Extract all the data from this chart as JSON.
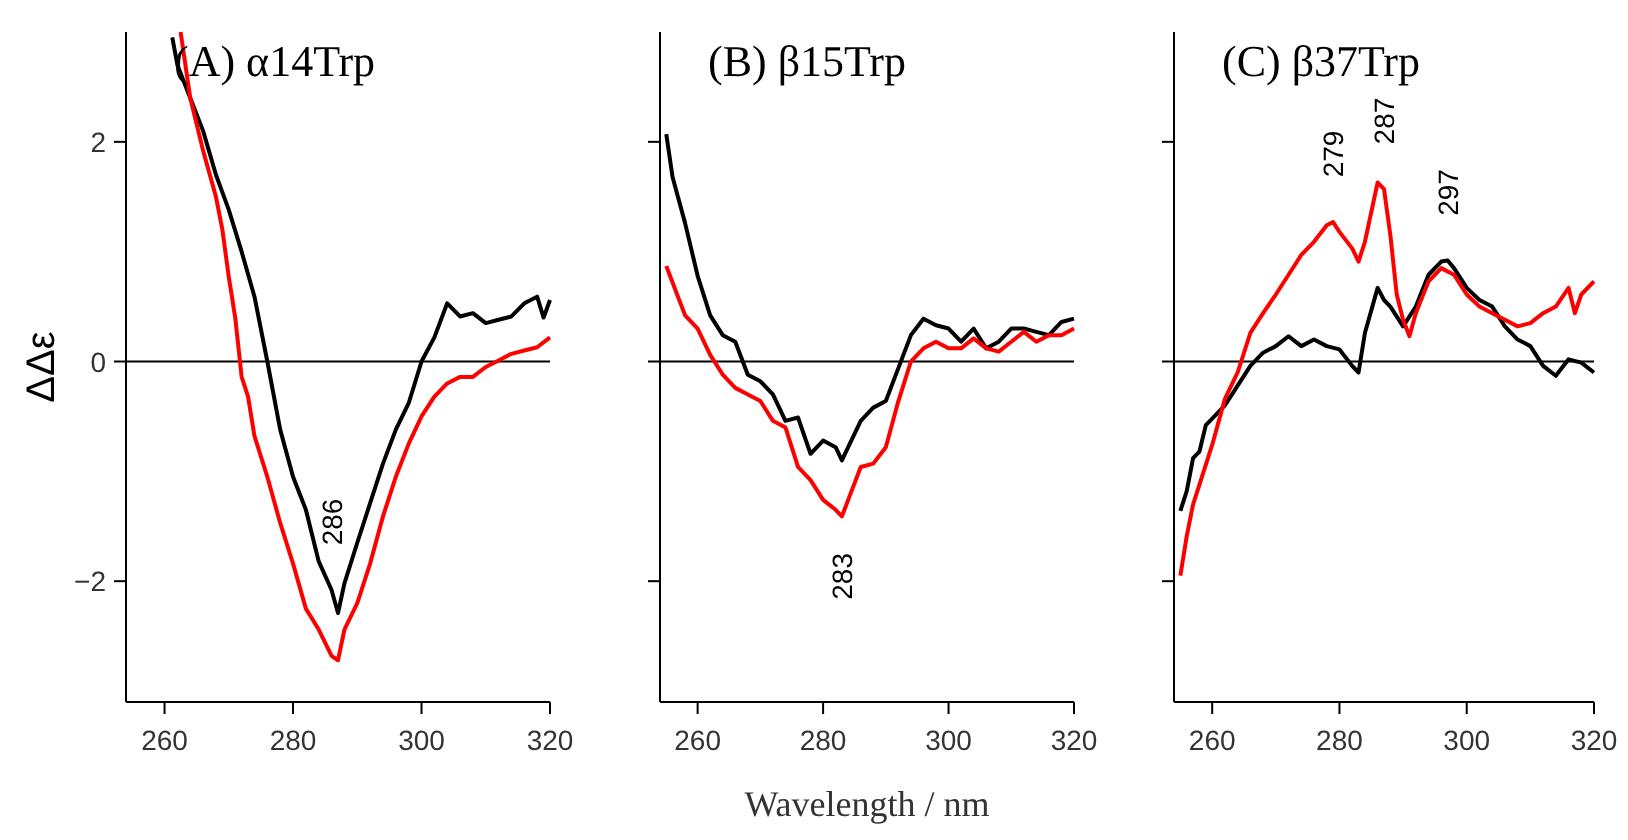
{
  "chart_data": [
    {
      "type": "line",
      "title": "(A) α14Trp",
      "ylabel": "ΔΔε",
      "xlim": [
        254,
        320
      ],
      "xticks": [
        260,
        280,
        300,
        320
      ],
      "ylim": [
        -3.1,
        3
      ],
      "yticks": [
        -2,
        0,
        2
      ],
      "ref_lines": [
        {
          "axis": "y",
          "value": 0,
          "color": "#000000"
        }
      ],
      "annotations": [
        {
          "text": "286",
          "x": 286,
          "y": -2.08
        }
      ],
      "series": [
        {
          "color": "#000000",
          "x": [
            261.2,
            262,
            264,
            266,
            268,
            270,
            272,
            274,
            276,
            278,
            280,
            282,
            284,
            286,
            287,
            288,
            290,
            292,
            294,
            296,
            298,
            300,
            302,
            304,
            306,
            308,
            310,
            312,
            314,
            316,
            318,
            319,
            320
          ],
          "values": [
            2.95,
            2.7,
            2.4,
            2.1,
            1.7,
            1.38,
            1.0,
            0.59,
            0,
            -0.62,
            -1.05,
            -1.35,
            -1.82,
            -2.08,
            -2.29,
            -2.02,
            -1.65,
            -1.29,
            -0.93,
            -0.62,
            -0.38,
            0,
            0.22,
            0.53,
            0.41,
            0.44,
            0.35,
            0.38,
            0.41,
            0.53,
            0.59,
            0.4,
            0.56
          ]
        },
        {
          "color": "#ff0000",
          "x": [
            262.5,
            264,
            266,
            268,
            269,
            270,
            271,
            272,
            273,
            274,
            276,
            278,
            280,
            282,
            284,
            286,
            287,
            288,
            290,
            292,
            294,
            296,
            298,
            300,
            302,
            304,
            306,
            308,
            310,
            312,
            314,
            316,
            318,
            320
          ],
          "values": [
            3.0,
            2.4,
            1.92,
            1.5,
            1.2,
            0.77,
            0.4,
            -0.14,
            -0.32,
            -0.68,
            -1.05,
            -1.47,
            -1.84,
            -2.25,
            -2.44,
            -2.68,
            -2.72,
            -2.44,
            -2.2,
            -1.84,
            -1.41,
            -1.05,
            -0.75,
            -0.5,
            -0.32,
            -0.2,
            -0.14,
            -0.14,
            -0.05,
            0.01,
            0.07,
            0.1,
            0.13,
            0.22
          ]
        }
      ]
    },
    {
      "type": "line",
      "title": "(B) β15Trp",
      "xlabel": "Wavelength / nm",
      "xlim": [
        254,
        320
      ],
      "xticks": [
        260,
        280,
        300,
        320
      ],
      "ylim": [
        -3.1,
        3
      ],
      "yticks": [
        {
          "value": -2,
          "label": null
        },
        {
          "value": 0,
          "label": null
        },
        {
          "value": 2,
          "label": null
        }
      ],
      "tick_labels": "x",
      "ref_lines": [
        {
          "axis": "y",
          "value": 0,
          "color": "#000000"
        }
      ],
      "annotations": [
        {
          "text": "283",
          "x": 283,
          "y": -1.41
        }
      ],
      "series": [
        {
          "color": "#000000",
          "x": [
            255,
            256,
            258,
            260,
            262,
            264,
            266,
            268,
            270,
            272,
            274,
            276,
            278,
            280,
            282,
            283,
            284,
            286,
            288,
            290,
            292,
            294,
            296,
            298,
            300,
            302,
            304,
            306,
            308,
            310,
            312,
            314,
            316,
            318,
            320
          ],
          "values": [
            2.07,
            1.68,
            1.26,
            0.78,
            0.42,
            0.24,
            0.18,
            -0.12,
            -0.18,
            -0.3,
            -0.54,
            -0.51,
            -0.84,
            -0.72,
            -0.78,
            -0.9,
            -0.78,
            -0.54,
            -0.42,
            -0.36,
            -0.06,
            0.24,
            0.39,
            0.33,
            0.3,
            0.18,
            0.3,
            0.12,
            0.18,
            0.3,
            0.3,
            0.27,
            0.24,
            0.36,
            0.39
          ]
        },
        {
          "color": "#ff0000",
          "x": [
            255,
            256,
            258,
            260,
            262,
            264,
            266,
            268,
            270,
            272,
            274,
            276,
            278,
            280,
            282,
            283,
            284,
            286,
            288,
            290,
            292,
            294,
            296,
            298,
            300,
            302,
            304,
            306,
            308,
            310,
            312,
            314,
            316,
            318,
            320
          ],
          "values": [
            0.87,
            0.72,
            0.42,
            0.3,
            0.06,
            -0.12,
            -0.24,
            -0.3,
            -0.36,
            -0.54,
            -0.6,
            -0.96,
            -1.08,
            -1.26,
            -1.35,
            -1.41,
            -1.26,
            -0.96,
            -0.93,
            -0.78,
            -0.36,
            0,
            0.12,
            0.18,
            0.12,
            0.12,
            0.21,
            0.12,
            0.09,
            0.18,
            0.27,
            0.18,
            0.24,
            0.24,
            0.3
          ]
        }
      ]
    },
    {
      "type": "line",
      "title": "(C) β37Trp",
      "xlim": [
        254,
        320
      ],
      "xticks": [
        260,
        280,
        300,
        320
      ],
      "ylim": [
        -3.1,
        3
      ],
      "yticks": [
        {
          "value": -2,
          "label": null
        },
        {
          "value": 0,
          "label": null
        },
        {
          "value": 2,
          "label": null
        }
      ],
      "tick_labels": "x",
      "ref_lines": [
        {
          "axis": "y",
          "value": 0,
          "color": "#000000"
        }
      ],
      "annotations": [
        {
          "text": "279",
          "x": 279,
          "y": 1.27
        },
        {
          "text": "287",
          "x": 287,
          "y": 1.57
        },
        {
          "text": "297",
          "x": 297,
          "y": 0.92
        }
      ],
      "series": [
        {
          "color": "#000000",
          "x": [
            255,
            256,
            257,
            258,
            259,
            260,
            262,
            264,
            266,
            268,
            270,
            272,
            274,
            276,
            278,
            280,
            282,
            283,
            284,
            286,
            287,
            288,
            290,
            292,
            294,
            296,
            297,
            298,
            300,
            302,
            304,
            306,
            308,
            310,
            312,
            314,
            316,
            318,
            320
          ],
          "values": [
            -1.36,
            -1.18,
            -0.88,
            -0.82,
            -0.58,
            -0.52,
            -0.4,
            -0.22,
            -0.04,
            0.08,
            0.14,
            0.23,
            0.14,
            0.2,
            0.14,
            0.11,
            -0.04,
            -0.1,
            0.26,
            0.67,
            0.56,
            0.5,
            0.32,
            0.5,
            0.79,
            0.91,
            0.92,
            0.85,
            0.67,
            0.56,
            0.5,
            0.32,
            0.2,
            0.14,
            -0.04,
            -0.13,
            0.02,
            -0.01,
            -0.1
          ]
        },
        {
          "color": "#ff0000",
          "x": [
            255,
            256,
            257,
            258,
            260,
            262,
            264,
            266,
            268,
            270,
            272,
            274,
            276,
            278,
            279,
            280,
            282,
            283,
            284,
            286,
            287,
            288,
            289,
            290,
            291,
            292,
            294,
            296,
            298,
            300,
            302,
            304,
            306,
            308,
            310,
            312,
            314,
            316,
            317,
            318,
            320
          ],
          "values": [
            -1.95,
            -1.59,
            -1.3,
            -1.12,
            -0.76,
            -0.34,
            -0.1,
            0.26,
            0.44,
            0.61,
            0.79,
            0.97,
            1.09,
            1.24,
            1.27,
            1.18,
            1.03,
            0.91,
            1.09,
            1.63,
            1.57,
            1.15,
            0.61,
            0.38,
            0.23,
            0.44,
            0.73,
            0.85,
            0.79,
            0.61,
            0.5,
            0.44,
            0.38,
            0.32,
            0.35,
            0.44,
            0.5,
            0.67,
            0.44,
            0.61,
            0.73
          ]
        }
      ]
    }
  ]
}
